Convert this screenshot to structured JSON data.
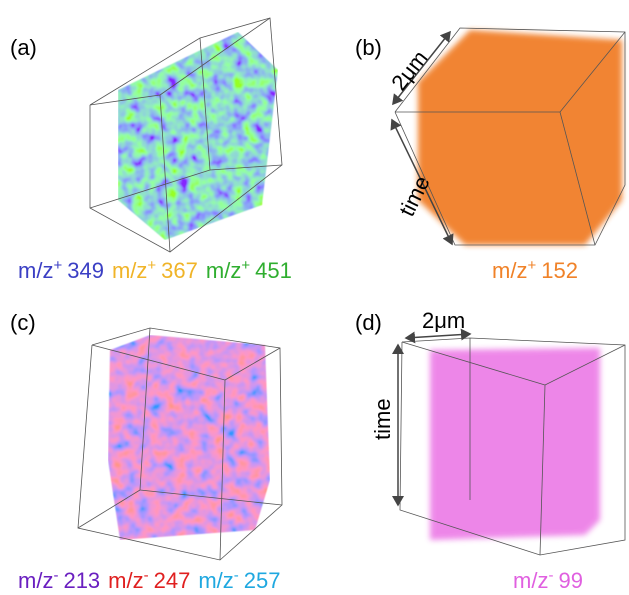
{
  "panels": [
    {
      "label": "(a)",
      "legend": [
        {
          "prefix": "m/z",
          "charge": "+",
          "mz": "349",
          "color": "#3b3fc4"
        },
        {
          "prefix": "m/z",
          "charge": "+",
          "mz": "367",
          "color": "#f0b428"
        },
        {
          "prefix": "m/z",
          "charge": "+",
          "mz": "451",
          "color": "#2fae2f"
        }
      ]
    },
    {
      "label": "(b)",
      "scale": {
        "width": "2μm",
        "depth": "time"
      },
      "legend": [
        {
          "prefix": "m/z",
          "charge": "+",
          "mz": "152",
          "color": "#f08228"
        }
      ]
    },
    {
      "label": "(c)",
      "legend": [
        {
          "prefix": "m/z",
          "charge": "-",
          "mz": "213",
          "color": "#6a1fc0"
        },
        {
          "prefix": "m/z",
          "charge": "-",
          "mz": "247",
          "color": "#e02020"
        },
        {
          "prefix": "m/z",
          "charge": "-",
          "mz": "257",
          "color": "#1fa8e0"
        }
      ]
    },
    {
      "label": "(d)",
      "scale": {
        "width": "2μm",
        "depth": "time"
      },
      "legend": [
        {
          "prefix": "m/z",
          "charge": "-",
          "mz": "99",
          "color": "#e060e0"
        }
      ]
    }
  ]
}
